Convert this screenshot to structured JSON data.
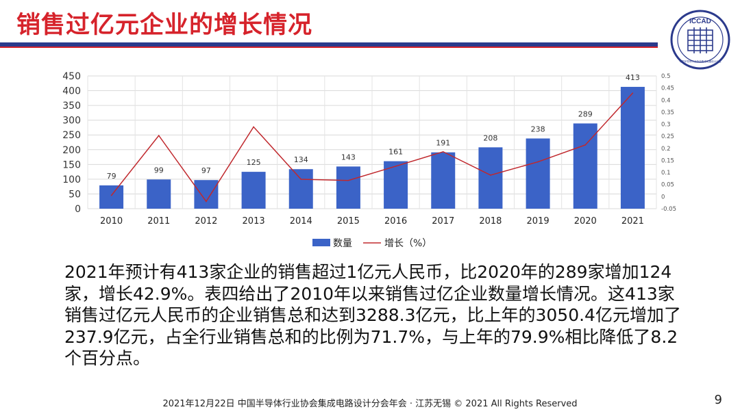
{
  "slide": {
    "title": "销售过亿元企业的增长情况",
    "paragraph": "2021年预计有413家企业的销售超过1亿元人民币，比2020年的289家增加124家，增长42.9%。表四给出了2010年以来销售过亿企业数量增长情况。这413家销售过亿元人民币的企业销售总和达到3288.3亿元，比上年的3050.4亿元增加了237.9亿元，占全行业销售总和的比例为71.7%，与上年的79.9%相比降低了8.2个百分点。",
    "footer": "2021年12月22日 中国半导体行业协会集成电路设计分会年会 · 江苏无锡 © 2021 All Rights Reserved",
    "page_number": "9"
  },
  "logo": {
    "text": "ICCAD",
    "small_text": "中国半导体行业协会集成电路设计分会",
    "color": "#2b3a8c"
  },
  "chart_data": {
    "type": "bar+line",
    "categories": [
      "2010",
      "2011",
      "2012",
      "2013",
      "2014",
      "2015",
      "2016",
      "2017",
      "2018",
      "2019",
      "2020",
      "2021"
    ],
    "series": [
      {
        "name": "数量",
        "type": "bar",
        "axis": "left",
        "color": "#3b63c7",
        "values": [
          79,
          99,
          97,
          125,
          134,
          143,
          161,
          191,
          208,
          238,
          289,
          413
        ]
      },
      {
        "name": "增长（%）",
        "type": "line",
        "axis": "right",
        "color": "#c0282d",
        "values": [
          0.005,
          0.253,
          -0.02,
          0.289,
          0.072,
          0.067,
          0.126,
          0.186,
          0.089,
          0.144,
          0.214,
          0.429
        ]
      }
    ],
    "y_left": {
      "range": [
        0,
        450
      ],
      "ticks": [
        "0",
        "50",
        "100",
        "150",
        "200",
        "250",
        "300",
        "350",
        "400",
        "450"
      ]
    },
    "y_right": {
      "range": [
        -0.05,
        0.5
      ],
      "ticks": [
        "-0.05",
        "0",
        "0.05",
        "0.1",
        "0.15",
        "0.2",
        "0.25",
        "0.3",
        "0.35",
        "0.4",
        "0.45",
        "0.5"
      ]
    },
    "data_labels": [
      "79",
      "99",
      "97",
      "125",
      "134",
      "143",
      "161",
      "191",
      "208",
      "238",
      "289",
      "413"
    ],
    "grid": true,
    "legend_position": "bottom"
  }
}
